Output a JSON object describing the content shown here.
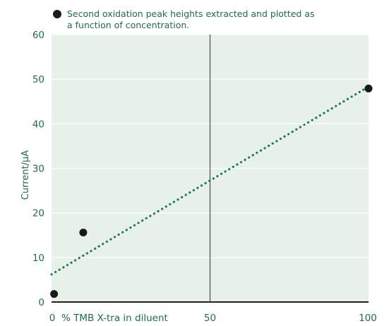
{
  "colors": {
    "plot_background": "#e8f0ea",
    "gridline": "#ffffff",
    "text": "#1f6b52",
    "marker": "#1a1a1a",
    "trendline": "#1a7a5a",
    "axis_line": "#222222",
    "center_line": "#555555"
  },
  "chart_data": {
    "type": "scatter",
    "title": "",
    "legend": {
      "placement": "top-left",
      "marker": "filled-circle",
      "lines": [
        "Second oxidation peak heights extracted and plotted as",
        "a function of concentration."
      ]
    },
    "xlabel": "% TMB X-tra in diluent",
    "ylabel": "Current/µA",
    "xlim": [
      0,
      100
    ],
    "ylim": [
      0,
      60
    ],
    "x_ticks": [
      0,
      50,
      100
    ],
    "y_ticks": [
      0,
      10,
      20,
      30,
      40,
      50,
      60
    ],
    "grid": {
      "horizontal": true,
      "vertical": false
    },
    "reference_line_x": 50,
    "series": [
      {
        "points": [
          {
            "x": 0.8,
            "y": 1.8
          },
          {
            "x": 10,
            "y": 15.6
          },
          {
            "x": 100,
            "y": 47.9
          }
        ]
      }
    ],
    "trendline": {
      "style": "dotted",
      "from": {
        "x": 0,
        "y": 6.2
      },
      "to": {
        "x": 100,
        "y": 48.3
      }
    }
  }
}
